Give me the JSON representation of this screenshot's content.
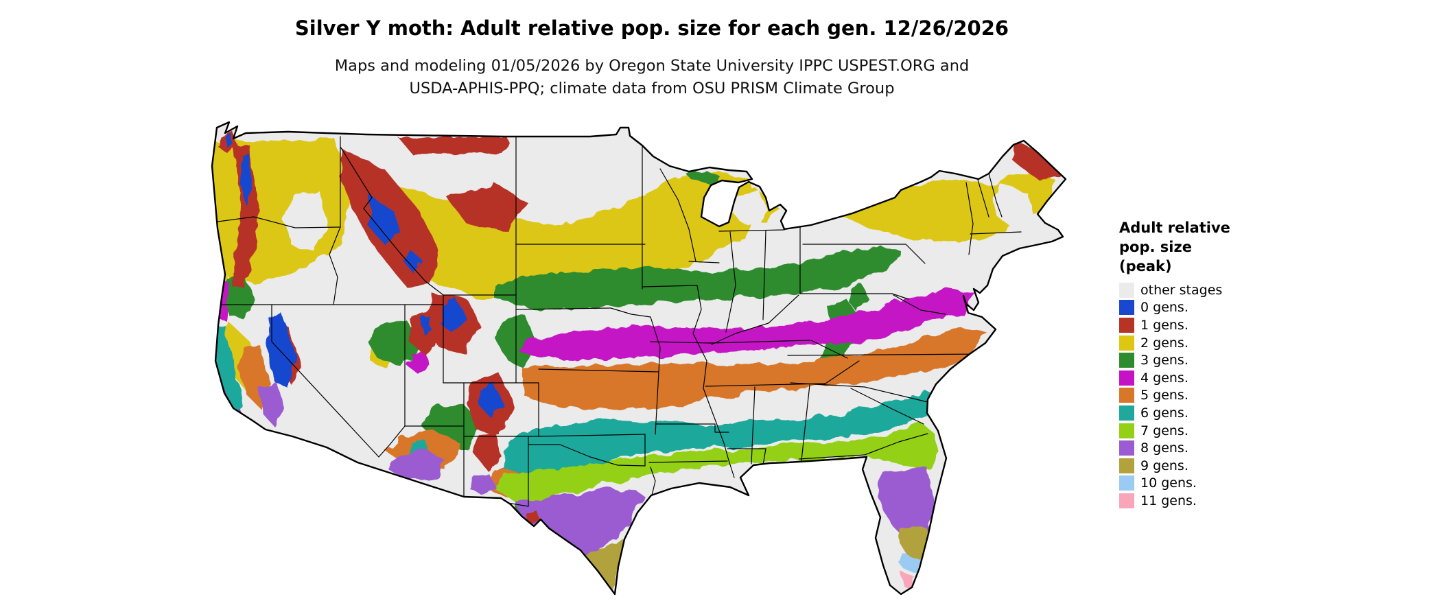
{
  "header": {
    "title": "Silver Y moth: Adult relative pop. size for each gen. 12/26/2026",
    "subtitle_line1": "Maps and modeling 01/05/2026 by Oregon State University IPPC USPEST.ORG and",
    "subtitle_line2": "USDA-APHIS-PPQ; climate data from OSU PRISM Climate Group"
  },
  "legend": {
    "title_lines": [
      "Adult relative",
      "pop. size",
      "(peak)"
    ],
    "items": [
      {
        "label": "other stages",
        "color": "#ebebeb"
      },
      {
        "label": "0 gens.",
        "color": "#1947cf"
      },
      {
        "label": "1 gens.",
        "color": "#b63326"
      },
      {
        "label": "2 gens.",
        "color": "#ddc713"
      },
      {
        "label": "3 gens.",
        "color": "#2e8b2e"
      },
      {
        "label": "4 gens.",
        "color": "#c413c4"
      },
      {
        "label": "5 gens.",
        "color": "#d8772a"
      },
      {
        "label": "6 gens.",
        "color": "#1fa89b"
      },
      {
        "label": "7 gens.",
        "color": "#93d016"
      },
      {
        "label": "8 gens.",
        "color": "#9a5cd0"
      },
      {
        "label": "9 gens.",
        "color": "#b2a23c"
      },
      {
        "label": "10 gens.",
        "color": "#9bcbf2"
      },
      {
        "label": "11 gens.",
        "color": "#f9a6ba"
      }
    ]
  },
  "map": {
    "description": "Contiguous United States raster map colored by number of adult generations"
  }
}
